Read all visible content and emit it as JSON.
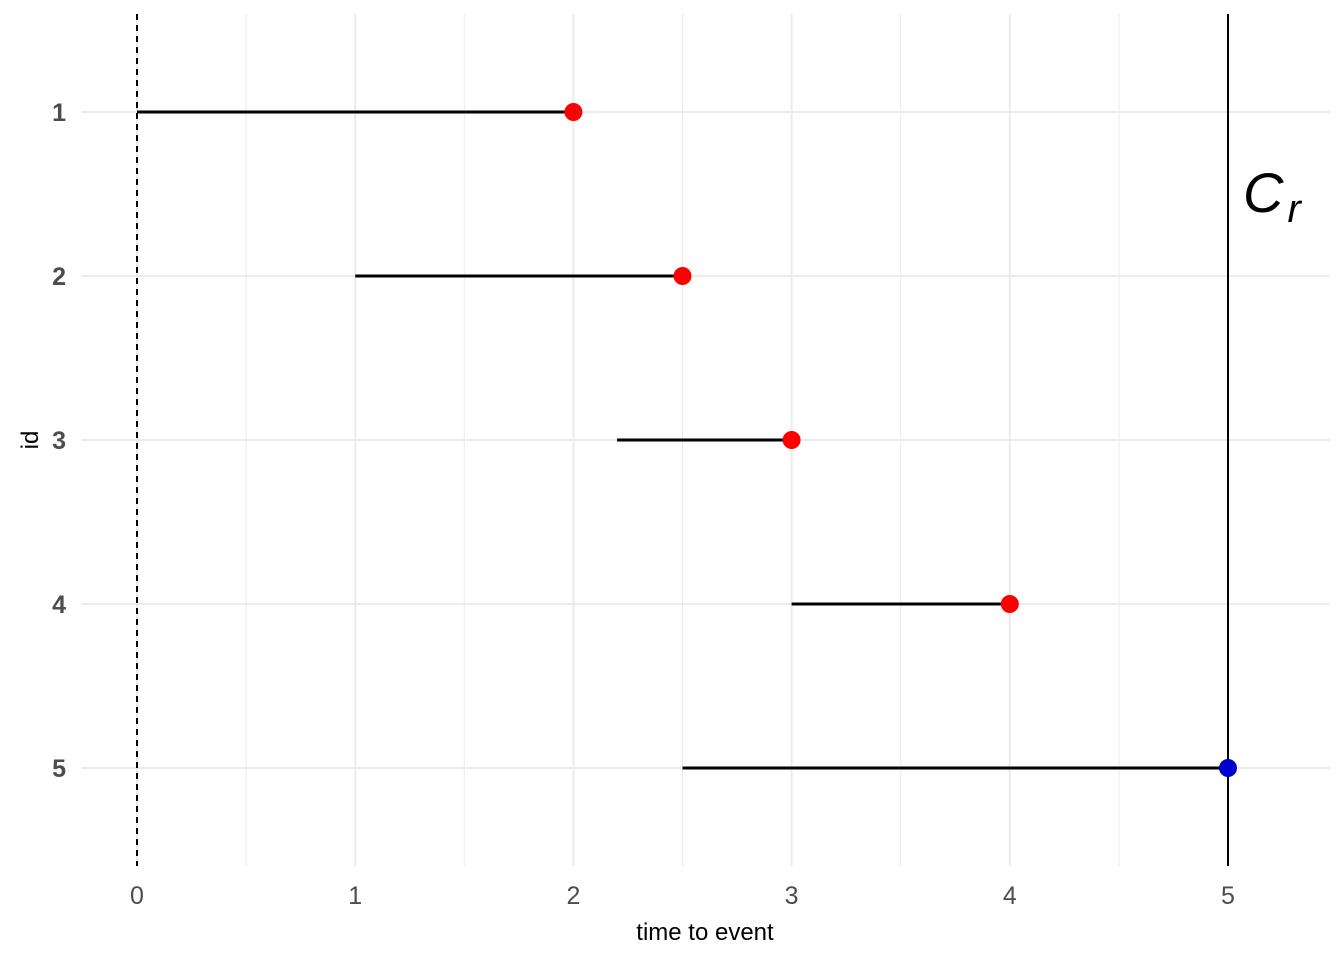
{
  "chart_data": {
    "type": "segment",
    "xlabel": "time to event",
    "ylabel": "id",
    "xlim": [
      -0.1,
      5.46
    ],
    "x_ticks": [
      "0",
      "1",
      "2",
      "3",
      "4",
      "5"
    ],
    "categories": [
      "1",
      "2",
      "3",
      "4",
      "5"
    ],
    "segments": [
      {
        "id": "1",
        "start": 0,
        "end": 2,
        "status": "event"
      },
      {
        "id": "2",
        "start": 1,
        "end": 2.5,
        "status": "event"
      },
      {
        "id": "3",
        "start": 2.2,
        "end": 3,
        "status": "event"
      },
      {
        "id": "4",
        "start": 3,
        "end": 4,
        "status": "event"
      },
      {
        "id": "5",
        "start": 2.5,
        "end": 5,
        "status": "censored"
      }
    ],
    "reference_lines": [
      {
        "x": 0,
        "style": "dashed"
      },
      {
        "x": 5,
        "style": "solid",
        "label_main": "C",
        "label_sub": "r"
      }
    ],
    "colors": {
      "event": "#ff0000",
      "censored": "#0000cc",
      "segment": "#000000",
      "grid": "#ebebeb"
    },
    "grid": true,
    "legend": "none"
  }
}
